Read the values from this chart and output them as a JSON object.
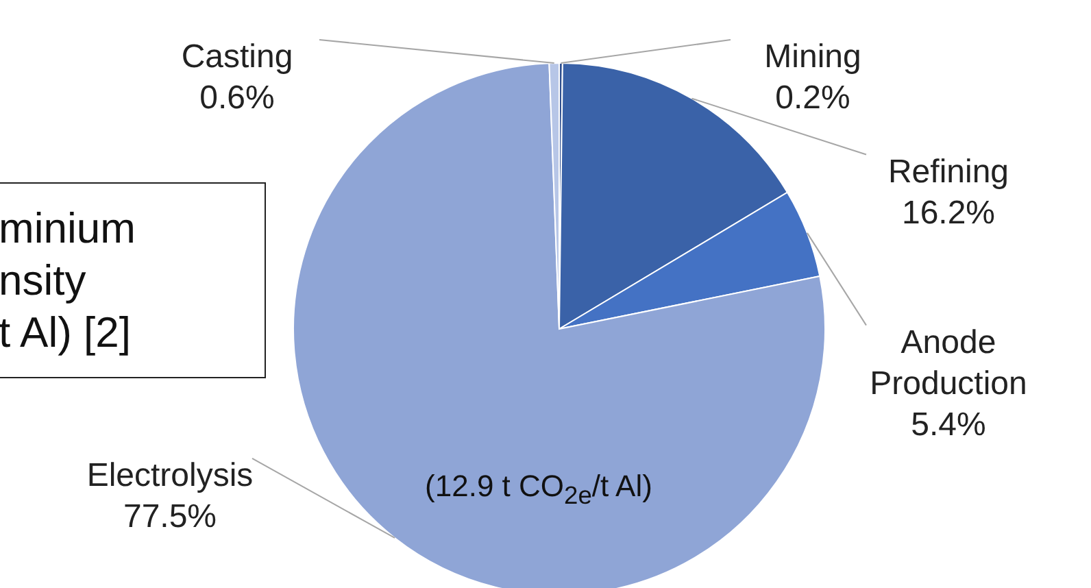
{
  "chart_data": {
    "type": "pie",
    "categories": [
      "Mining",
      "Refining",
      "Anode Production",
      "Electrolysis",
      "Casting"
    ],
    "values": [
      0.2,
      16.2,
      5.4,
      77.5,
      0.6
    ],
    "value_labels": [
      "0.2%",
      "16.2%",
      "5.4%",
      "77.5%",
      "0.6%"
    ],
    "colors": [
      "#2f4f8f",
      "#3a62a8",
      "#4472c4",
      "#8fa5d6",
      "#b7c6e7"
    ],
    "annotations": [
      "minium",
      "nsity",
      "t Al) [2]",
      "(12.9 t CO$_{2e}$/t Al)"
    ],
    "legend": false
  }
}
